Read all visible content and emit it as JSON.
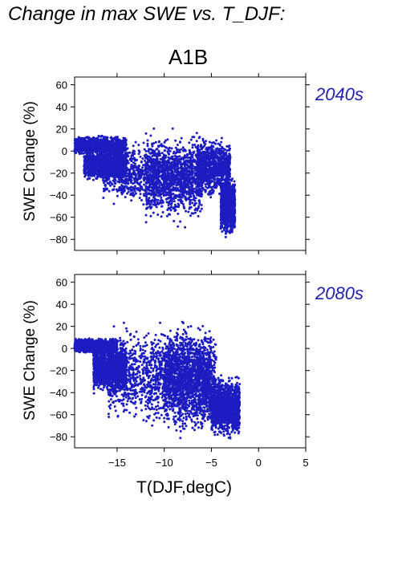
{
  "figure": {
    "title": "Change in max SWE vs. T_DJF:",
    "scenario": "A1B",
    "point_color": "#1c1cc0",
    "period_color": "#2020b0"
  },
  "chart_data": [
    {
      "type": "scatter",
      "period_label": "2040s",
      "xlabel": "",
      "ylabel": "SWE Change (%)",
      "xlim": [
        -19.5,
        5
      ],
      "ylim": [
        -90,
        67
      ],
      "x_ticks": [
        -15,
        -10,
        -5,
        0,
        5
      ],
      "y_ticks": [
        60,
        40,
        20,
        0,
        -20,
        -40,
        -60,
        -80
      ],
      "y_tick_labels": [
        "60",
        "40",
        "20",
        "0",
        "−20",
        "−40",
        "−60",
        "−80"
      ],
      "show_x_tick_labels": false,
      "grid": false,
      "cloud": {
        "x_range": [
          -19.5,
          -2.5
        ],
        "y_range": [
          -81,
          23
        ],
        "clusters": [
          {
            "x": [
              -19.5,
              -14
            ],
            "y": [
              -5,
              15
            ]
          },
          {
            "x": [
              -18.5,
              -14
            ],
            "y": [
              -30,
              5
            ]
          },
          {
            "x": [
              -16.5,
              -7
            ],
            "y": [
              -55,
              15
            ]
          },
          {
            "x": [
              -12,
              -6
            ],
            "y": [
              -72,
              22
            ]
          },
          {
            "x": [
              -6.5,
              -3
            ],
            "y": [
              -45,
              15
            ]
          },
          {
            "x": [
              -4,
              -2.5
            ],
            "y": [
              -80,
              -20
            ]
          }
        ],
        "approx_points": 6000
      }
    },
    {
      "type": "scatter",
      "period_label": "2080s",
      "xlabel": "T(DJF,degC)",
      "ylabel": "SWE Change (%)",
      "xlim": [
        -19.5,
        5
      ],
      "ylim": [
        -90,
        67
      ],
      "x_ticks": [
        -15,
        -10,
        -5,
        0,
        5
      ],
      "x_tick_labels": [
        "−15",
        "−10",
        "−5",
        "0",
        "5"
      ],
      "y_ticks": [
        60,
        40,
        20,
        0,
        -20,
        -40,
        -60,
        -80
      ],
      "y_tick_labels": [
        "60",
        "40",
        "20",
        "0",
        "−20",
        "−40",
        "−60",
        "−80"
      ],
      "show_x_tick_labels": true,
      "grid": false,
      "cloud": {
        "x_range": [
          -19.5,
          -2
        ],
        "y_range": [
          -88,
          31
        ],
        "clusters": [
          {
            "x": [
              -19.5,
              -15
            ],
            "y": [
              -5,
              10
            ]
          },
          {
            "x": [
              -17.5,
              -14
            ],
            "y": [
              -45,
              10
            ]
          },
          {
            "x": [
              -16,
              -4.5
            ],
            "y": [
              -75,
              25
            ]
          },
          {
            "x": [
              -10,
              -5
            ],
            "y": [
              -85,
              30
            ]
          },
          {
            "x": [
              -5,
              -2
            ],
            "y": [
              -85,
              -20
            ]
          }
        ],
        "approx_points": 7000
      }
    }
  ]
}
